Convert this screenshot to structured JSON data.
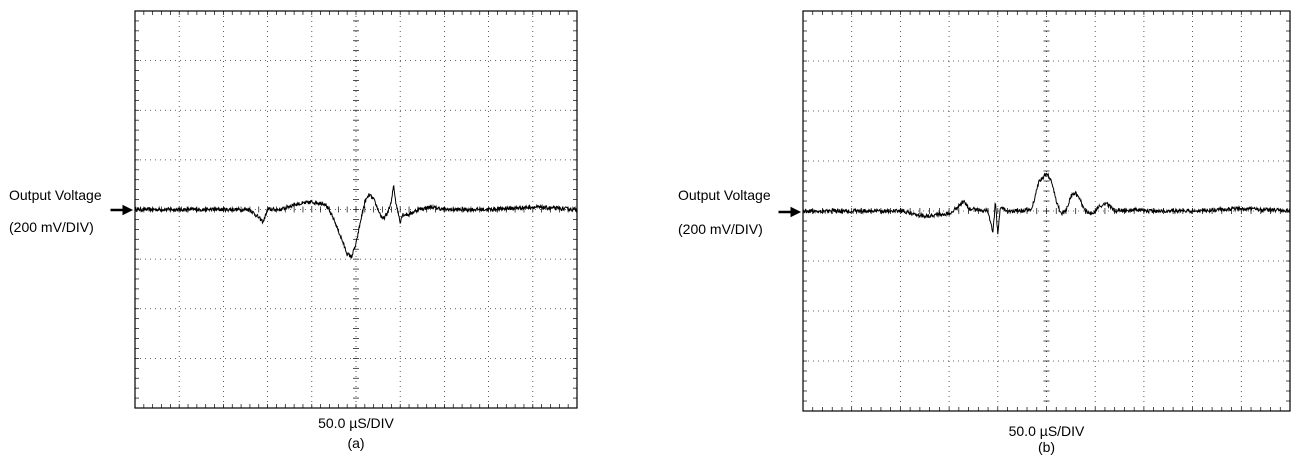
{
  "chart_data": [
    {
      "type": "line",
      "id": "a",
      "label_line1": "Output Voltage",
      "label_line2": "(200 mV/DIV)",
      "xlabel": "50.0 µS/DIV",
      "caption": "(a)",
      "grid": true,
      "x_divisions": 10,
      "y_divisions": 8,
      "xlim": [
        0,
        10
      ],
      "ylim": [
        -4,
        4
      ],
      "noise_div": 0.04,
      "series": [
        {
          "x": [
            0,
            2.6,
            2.9,
            3.0,
            3.3,
            3.6,
            4.0,
            4.3,
            4.5,
            4.7,
            4.8,
            4.9,
            5.0,
            5.1,
            5.2,
            5.3,
            5.4,
            5.5,
            5.6,
            5.7,
            5.8,
            5.85,
            5.9,
            5.95,
            6.0,
            6.05,
            6.2,
            6.4,
            6.7,
            7.0,
            8.0,
            9.0,
            10.0
          ],
          "y": [
            0,
            0,
            -0.25,
            0,
            0,
            0.1,
            0.15,
            0.12,
            -0.2,
            -0.65,
            -0.9,
            -0.95,
            -0.7,
            -0.25,
            0.15,
            0.3,
            0.2,
            0,
            -0.2,
            -0.1,
            0.15,
            0.5,
            0.15,
            -0.05,
            -0.25,
            -0.1,
            -0.1,
            0,
            0.05,
            0,
            0,
            0.05,
            0
          ]
        }
      ]
    },
    {
      "type": "line",
      "id": "b",
      "label_line1": "Output Voltage",
      "label_line2": "(200 mV/DIV)",
      "xlabel": "50.0 µS/DIV",
      "caption": "(b)",
      "grid": true,
      "x_divisions": 10,
      "y_divisions": 8,
      "xlim": [
        0,
        10
      ],
      "ylim": [
        -4,
        4
      ],
      "noise_div": 0.04,
      "series": [
        {
          "x": [
            0,
            2.0,
            2.5,
            3.0,
            3.2,
            3.3,
            3.4,
            3.8,
            3.9,
            3.95,
            4.0,
            4.05,
            4.15,
            4.5,
            4.7,
            4.85,
            5.0,
            5.1,
            5.2,
            5.3,
            5.4,
            5.5,
            5.6,
            5.7,
            5.8,
            5.9,
            6.0,
            6.1,
            6.2,
            6.3,
            6.4,
            6.5,
            6.6,
            6.8,
            7.0,
            8.0,
            9.0,
            10.0
          ],
          "y": [
            0,
            0,
            -0.1,
            -0.05,
            0.1,
            0.2,
            0.05,
            0,
            -0.45,
            0.2,
            -0.5,
            0.1,
            0,
            0,
            0.05,
            0.6,
            0.75,
            0.6,
            0.2,
            -0.05,
            0,
            0.3,
            0.35,
            0.2,
            0,
            -0.05,
            0,
            0.1,
            0.15,
            0.1,
            0,
            0.02,
            0,
            0.02,
            0,
            0,
            0.05,
            0
          ]
        }
      ]
    }
  ]
}
